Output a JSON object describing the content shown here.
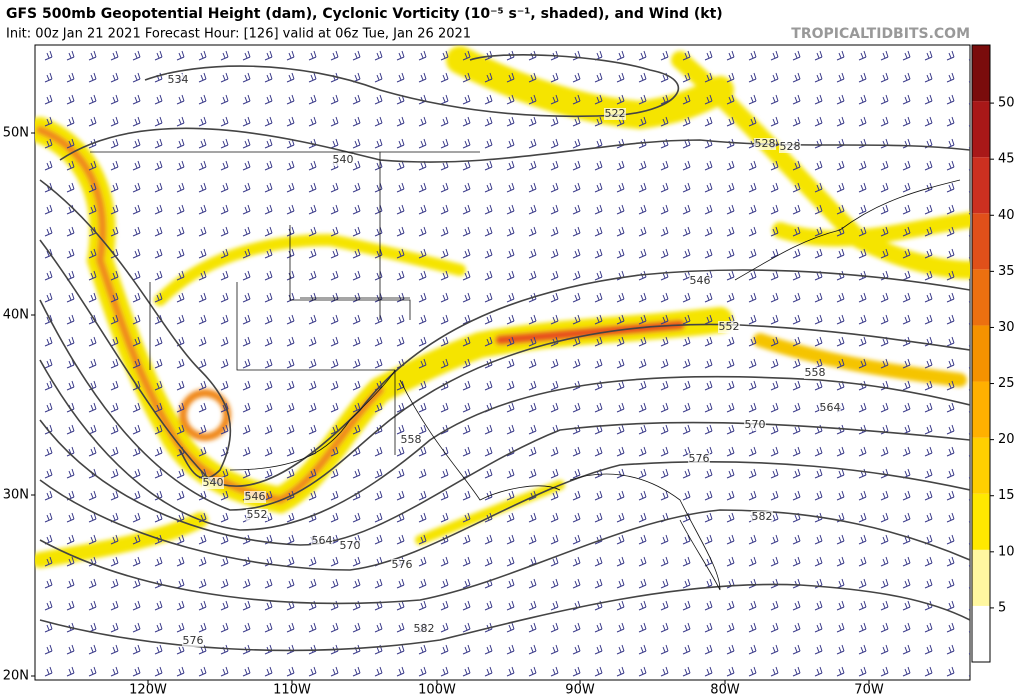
{
  "header": {
    "title": "GFS 500mb Geopotential Height (dam), Cyclonic Vorticity (10⁻⁵ s⁻¹, shaded), and Wind (kt)",
    "subtitle": "Init: 00z Jan 21 2021   Forecast Hour: [126]   valid at 06z Tue, Jan 26 2021",
    "credit": "TROPICALTIDBITS.COM"
  },
  "colorbar": {
    "ticks": [
      5,
      10,
      15,
      20,
      25,
      30,
      35,
      40,
      45,
      50
    ]
  },
  "axes": {
    "lat_labels": [
      "50N",
      "40N",
      "30N",
      "20N"
    ],
    "lon_labels": [
      "120W",
      "110W",
      "100W",
      "90W",
      "80W",
      "70W"
    ]
  },
  "contour_labels": [
    "534",
    "540",
    "522",
    "528",
    "528",
    "546",
    "552",
    "558",
    "564",
    "570",
    "576",
    "582",
    "558",
    "540",
    "546",
    "552",
    "564",
    "570",
    "576",
    "582",
    "576"
  ]
}
